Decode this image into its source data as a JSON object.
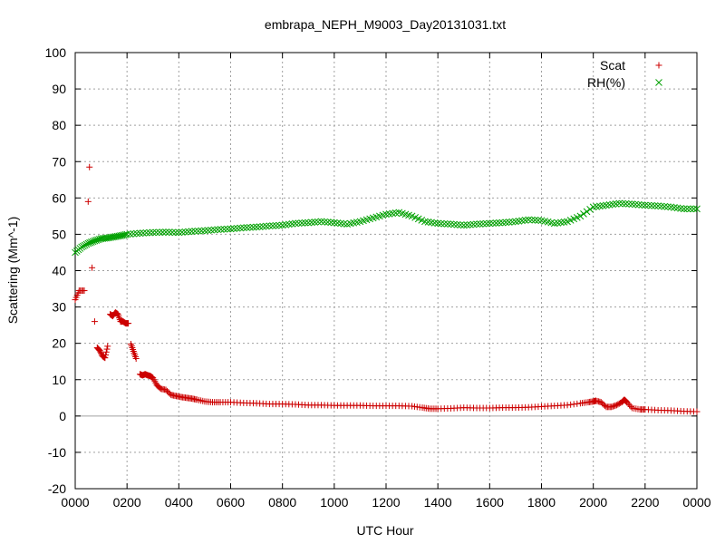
{
  "chart_data": {
    "type": "scatter",
    "title": "embrapa_NEPH_M9003_Day20131031.txt",
    "xlabel": "UTC Hour",
    "ylabel": "Scattering (Mm^-1)",
    "xlim": [
      0,
      24
    ],
    "ylim": [
      -20,
      100
    ],
    "grid": true,
    "legend_position": "top-right",
    "x_ticks": [
      0,
      2,
      4,
      6,
      8,
      10,
      12,
      14,
      16,
      18,
      20,
      22,
      24
    ],
    "x_tick_labels": [
      "0000",
      "0200",
      "0400",
      "0600",
      "0800",
      "1000",
      "1200",
      "1400",
      "1600",
      "1800",
      "2000",
      "2200",
      "0000"
    ],
    "y_ticks": [
      -20,
      -10,
      0,
      10,
      20,
      30,
      40,
      50,
      60,
      70,
      80,
      90,
      100
    ],
    "series": [
      {
        "name": "Scat",
        "marker": "plus",
        "color": "#cc0000",
        "x": [
          0.0,
          0.15,
          0.35,
          0.5,
          0.55,
          0.65,
          0.75,
          0.85,
          0.95,
          1.05,
          1.15,
          1.25,
          1.35,
          1.45,
          1.55,
          1.65,
          1.75,
          1.85,
          1.95,
          2.05,
          2.15,
          2.25,
          2.35,
          2.5,
          2.6,
          2.7,
          2.8,
          2.9,
          3.0,
          3.15,
          3.3,
          3.5,
          3.7,
          3.9,
          4.1,
          4.3,
          4.5,
          4.7,
          5.0,
          5.3,
          5.6,
          6.0,
          6.5,
          7.0,
          7.5,
          8.0,
          8.5,
          9.0,
          9.5,
          10.0,
          10.5,
          11.0,
          11.5,
          12.0,
          12.5,
          13.0,
          13.4,
          13.7,
          14.0,
          14.5,
          15.0,
          15.5,
          16.0,
          16.5,
          17.0,
          17.5,
          18.0,
          18.5,
          19.0,
          19.5,
          19.8,
          20.0,
          20.1,
          20.3,
          20.5,
          20.7,
          20.9,
          21.1,
          21.2,
          21.3,
          21.5,
          21.8,
          22.0,
          22.5,
          23.0,
          23.5,
          24.0
        ],
        "y": [
          32.0,
          34.5,
          34.5,
          59.0,
          68.5,
          40.8,
          26.0,
          18.8,
          18.0,
          16.5,
          16.0,
          19.2,
          28.0,
          27.5,
          28.5,
          28.0,
          26.0,
          26.0,
          25.5,
          25.5,
          19.8,
          17.8,
          15.8,
          11.5,
          11.2,
          11.5,
          11.2,
          11.0,
          10.5,
          8.5,
          7.5,
          7.2,
          5.8,
          5.5,
          5.2,
          5.0,
          4.8,
          4.5,
          4.0,
          3.8,
          3.8,
          3.8,
          3.6,
          3.5,
          3.3,
          3.3,
          3.2,
          3.0,
          3.0,
          2.9,
          2.9,
          2.9,
          2.8,
          2.8,
          2.8,
          2.7,
          2.3,
          2.0,
          2.0,
          2.1,
          2.3,
          2.2,
          2.2,
          2.3,
          2.3,
          2.4,
          2.6,
          2.8,
          3.0,
          3.5,
          3.8,
          4.0,
          4.2,
          3.8,
          2.5,
          2.5,
          3.0,
          3.8,
          4.5,
          3.8,
          2.2,
          1.8,
          1.8,
          1.6,
          1.5,
          1.3,
          1.2
        ]
      },
      {
        "name": "RH(%)",
        "marker": "cross",
        "color": "#00a000",
        "x": [
          0.0,
          0.25,
          0.5,
          0.75,
          1.0,
          1.25,
          1.5,
          1.75,
          2.0,
          2.5,
          3.0,
          3.5,
          4.0,
          4.5,
          5.0,
          5.5,
          6.0,
          6.5,
          7.0,
          7.5,
          8.0,
          8.5,
          9.0,
          9.5,
          10.0,
          10.5,
          11.0,
          11.5,
          12.0,
          12.5,
          13.0,
          13.5,
          14.0,
          14.5,
          15.0,
          15.5,
          16.0,
          16.5,
          17.0,
          17.5,
          18.0,
          18.5,
          19.0,
          19.5,
          20.0,
          20.5,
          21.0,
          21.5,
          22.0,
          22.5,
          23.0,
          23.5,
          24.0
        ],
        "y": [
          45.0,
          46.5,
          47.5,
          48.2,
          48.8,
          49.0,
          49.3,
          49.6,
          50.0,
          50.3,
          50.5,
          50.6,
          50.5,
          50.8,
          51.0,
          51.3,
          51.5,
          51.8,
          52.0,
          52.3,
          52.5,
          53.0,
          53.2,
          53.5,
          53.2,
          52.8,
          53.5,
          54.5,
          55.5,
          56.0,
          55.0,
          53.5,
          53.0,
          52.8,
          52.5,
          52.8,
          53.0,
          53.2,
          53.5,
          54.0,
          53.8,
          53.0,
          53.5,
          55.0,
          57.5,
          58.0,
          58.5,
          58.3,
          58.0,
          57.8,
          57.5,
          57.0,
          57.0
        ]
      }
    ]
  }
}
